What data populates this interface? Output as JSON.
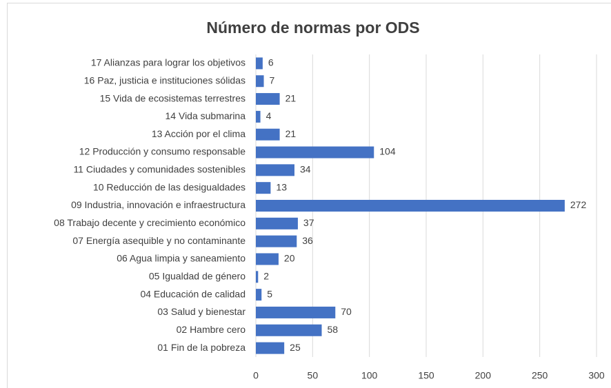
{
  "chart_data": {
    "type": "bar",
    "orientation": "horizontal",
    "title": "Número de normas por ODS",
    "categories": [
      "17 Alianzas para lograr los objetivos",
      "16 Paz, justicia e instituciones sólidas",
      "15 Vida de ecosistemas terrestres",
      "14 Vida submarina",
      "13 Acción por el clima",
      "12 Producción y consumo responsable",
      "11 Ciudades y comunidades sostenibles",
      "10 Reducción de las desigualdades",
      "09 Industria, innovación e infraestructura",
      "08 Trabajo decente y crecimiento económico",
      "07 Energía asequible y no contaminante",
      "06 Agua limpia y saneamiento",
      "05 Igualdad de género",
      "04 Educación de calidad",
      "03 Salud y bienestar",
      "02 Hambre cero",
      "01 Fin de la pobreza"
    ],
    "values": [
      6,
      7,
      21,
      4,
      21,
      104,
      34,
      13,
      272,
      37,
      36,
      20,
      2,
      5,
      70,
      58,
      25
    ],
    "color": "#4472c4",
    "xlim": [
      0,
      300
    ],
    "xticks": [
      0,
      50,
      100,
      150,
      200,
      250,
      300
    ],
    "grid": true
  }
}
